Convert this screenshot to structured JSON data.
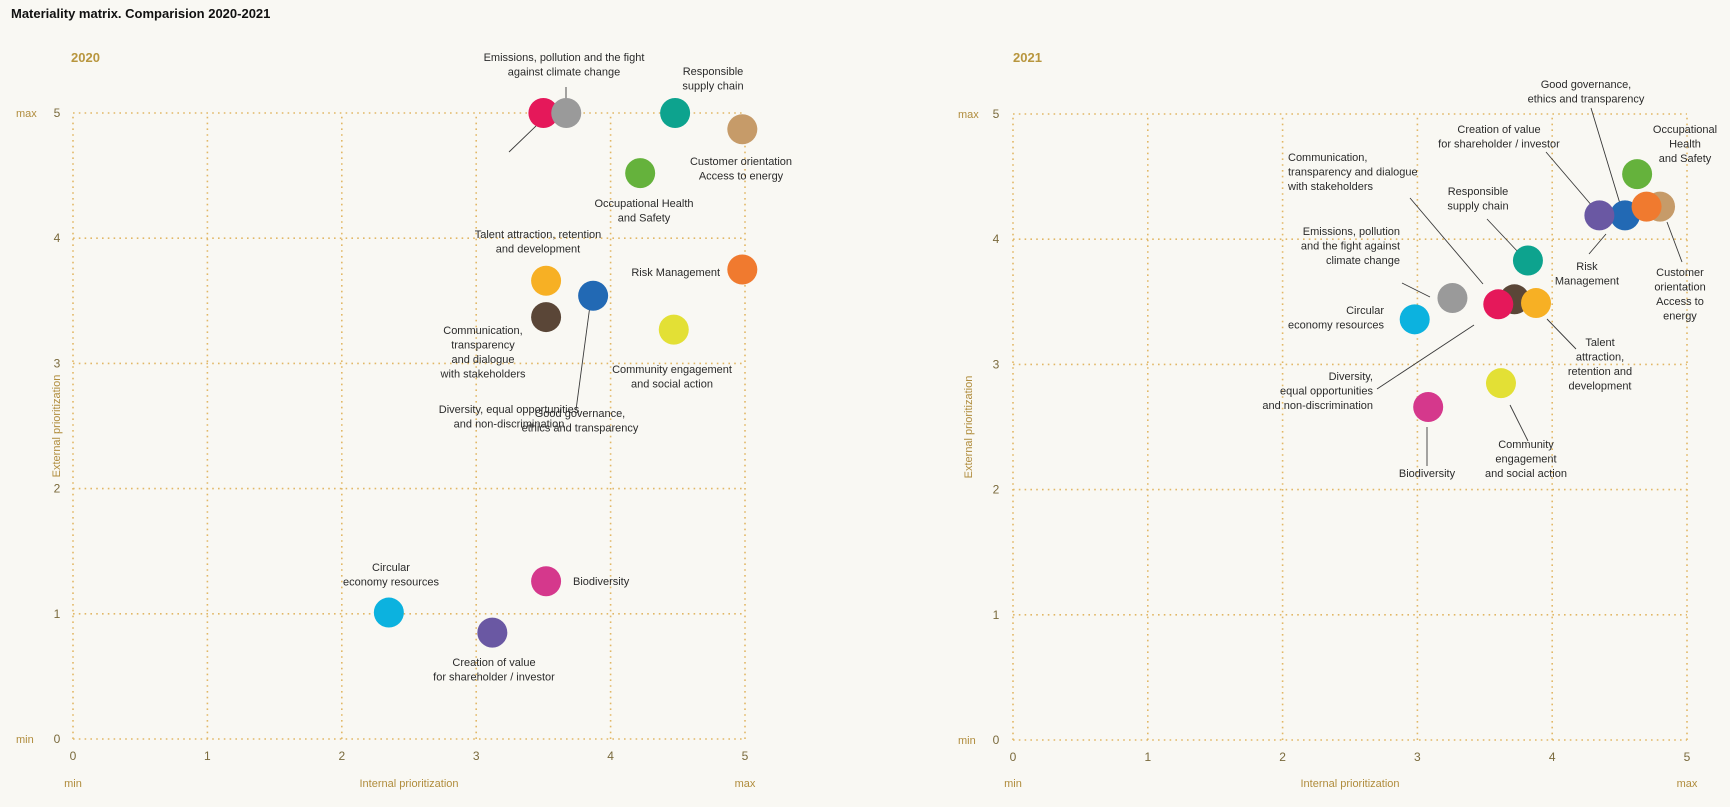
{
  "page_title": "Materiality matrix. Comparision 2020-2021",
  "chart_data": [
    {
      "type": "scatter",
      "title": "2020",
      "xlabel": "Internal prioritization",
      "ylabel": "External prioritization",
      "xlim": [
        0,
        5
      ],
      "ylim": [
        0,
        5
      ],
      "x_ticks": [
        "0",
        "1",
        "2",
        "3",
        "4",
        "5"
      ],
      "y_ticks": [
        "0",
        "1",
        "2",
        "3",
        "4",
        "5"
      ],
      "x_min_label": "min",
      "x_max_label": "max",
      "y_min_label": "min",
      "y_max_label": "max",
      "grid": true,
      "points": [
        {
          "label": "Diversity, equal opportunities\nand non-discrimination",
          "x": 3.5,
          "y": 5.0,
          "color": "#e5185a"
        },
        {
          "label": "Emissions, pollution and the fight\nagainst climate change",
          "x": 3.67,
          "y": 5.0,
          "color": "#9a9a9a"
        },
        {
          "label": "Responsible\nsupply chain",
          "x": 4.48,
          "y": 5.0,
          "color": "#0da38e"
        },
        {
          "label": "Customer orientation\nAccess to energy",
          "x": 4.98,
          "y": 4.87,
          "color": "#c69b69"
        },
        {
          "label": "Occupational Health\nand Safety",
          "x": 4.22,
          "y": 4.52,
          "color": "#65b23c"
        },
        {
          "label": "Risk Management",
          "x": 4.98,
          "y": 3.75,
          "color": "#f07a2f"
        },
        {
          "label": "Talent attraction, retention\nand development",
          "x": 3.52,
          "y": 3.66,
          "color": "#f7b024"
        },
        {
          "label": "Good governance,\nethics and transparency",
          "x": 3.87,
          "y": 3.54,
          "color": "#2269b4"
        },
        {
          "label": "Communication,\ntransparency\nand dialogue\nwith stakeholders",
          "x": 3.52,
          "y": 3.37,
          "color": "#5a4637"
        },
        {
          "label": "Community engagement\nand social action",
          "x": 4.47,
          "y": 3.27,
          "color": "#e3e035"
        },
        {
          "label": "Biodiversity",
          "x": 3.52,
          "y": 1.26,
          "color": "#d5388c"
        },
        {
          "label": "Circular\neconomy resources",
          "x": 2.35,
          "y": 1.01,
          "color": "#0cb2df"
        },
        {
          "label": "Creation of value\nfor shareholder / investor",
          "x": 3.12,
          "y": 0.85,
          "color": "#6a58a3"
        }
      ]
    },
    {
      "type": "scatter",
      "title": "2021",
      "xlabel": "Internal prioritization",
      "ylabel": "External prioritization",
      "xlim": [
        0,
        5
      ],
      "ylim": [
        0,
        5
      ],
      "x_ticks": [
        "0",
        "1",
        "2",
        "3",
        "4",
        "5"
      ],
      "y_ticks": [
        "0",
        "1",
        "2",
        "3",
        "4",
        "5"
      ],
      "x_min_label": "min",
      "x_max_label": "max",
      "y_min_label": "min",
      "y_max_label": "max",
      "grid": true,
      "points": [
        {
          "label": "Good governance,\nethics and transparency",
          "x": 4.54,
          "y": 4.19,
          "color": "#2269b4"
        },
        {
          "label": "Creation of value\nfor shareholder / investor",
          "x": 4.35,
          "y": 4.19,
          "color": "#6a58a3"
        },
        {
          "label": "Occupational\nHealth\nand Safety",
          "x": 4.63,
          "y": 4.52,
          "color": "#65b23c"
        },
        {
          "label": "Customer\norientation\nAccess to\nenergy",
          "x": 4.8,
          "y": 4.26,
          "color": "#c69b69"
        },
        {
          "label": "Risk\nManagement",
          "x": 4.7,
          "y": 4.26,
          "color": "#f07a2f"
        },
        {
          "label": "Responsible\nsupply chain",
          "x": 3.82,
          "y": 3.83,
          "color": "#0da38e"
        },
        {
          "label": "Communication,\ntransparency and dialogue\nwith stakeholders",
          "x": 3.72,
          "y": 3.52,
          "color": "#5a4637"
        },
        {
          "label": "Emissions, pollution\nand the fight against\nclimate change",
          "x": 3.26,
          "y": 3.53,
          "color": "#9a9a9a"
        },
        {
          "label": "Talent\nattraction,\nretention and\ndevelopment",
          "x": 3.88,
          "y": 3.49,
          "color": "#f7b024"
        },
        {
          "label": "Diversity,\nequal opportunities\nand non-discrimination",
          "x": 3.6,
          "y": 3.48,
          "color": "#e5185a"
        },
        {
          "label": "Circular\neconomy resources",
          "x": 2.98,
          "y": 3.36,
          "color": "#0cb2df"
        },
        {
          "label": "Community\nengagement\nand social action",
          "x": 3.62,
          "y": 2.85,
          "color": "#e3e035"
        },
        {
          "label": "Biodiversity",
          "x": 3.08,
          "y": 2.66,
          "color": "#d5388c"
        }
      ]
    }
  ]
}
